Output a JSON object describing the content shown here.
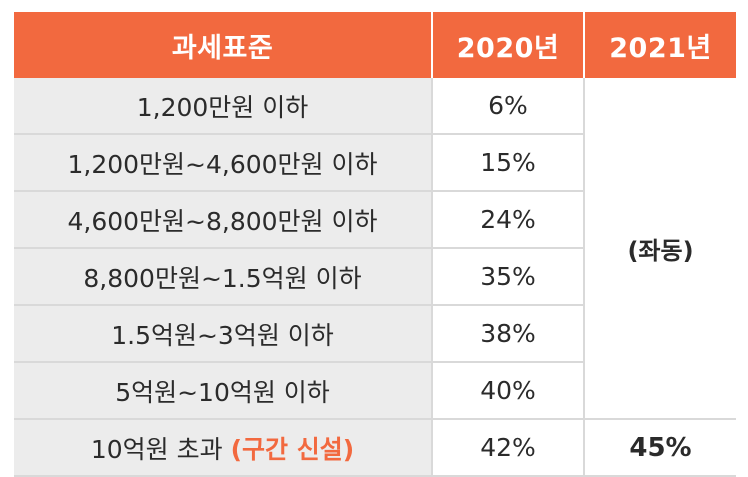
{
  "colors": {
    "header_bg": "#f2693f",
    "row_bg": "#ececec",
    "accent": "#f2693f"
  },
  "header": {
    "col1": "과세표준",
    "col2": "2020년",
    "col3": "2021년"
  },
  "rows": [
    {
      "bracket": "1,200만원 이하",
      "rate_2020": "6%"
    },
    {
      "bracket": "1,200만원~4,600만원 이하",
      "rate_2020": "15%"
    },
    {
      "bracket": "4,600만원~8,800만원 이하",
      "rate_2020": "24%"
    },
    {
      "bracket": "8,800만원~1.5억원 이하",
      "rate_2020": "35%"
    },
    {
      "bracket": "1.5억원~3억원 이하",
      "rate_2020": "38%"
    },
    {
      "bracket": "5억원~10억원 이하",
      "rate_2020": "40%"
    },
    {
      "bracket": "10억원 초과",
      "bracket_note": "(구간 신설)",
      "rate_2020": "42%",
      "rate_2021": "45%"
    }
  ],
  "merged_2021_label": "(좌동)"
}
